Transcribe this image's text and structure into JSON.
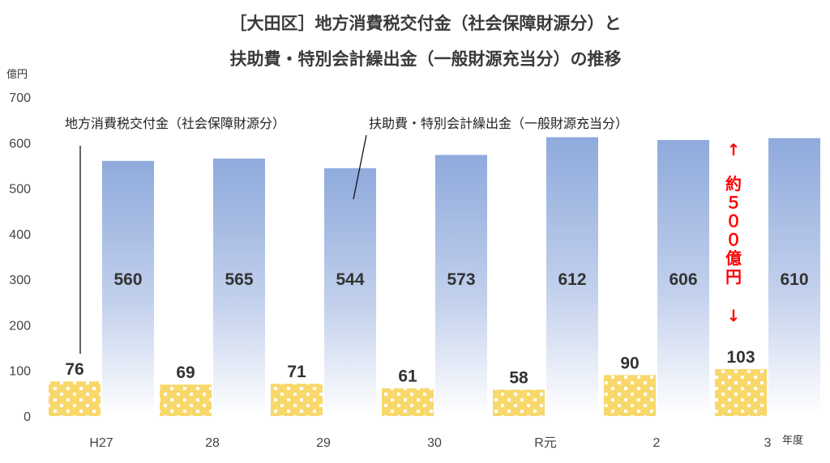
{
  "chart_data": {
    "type": "bar",
    "title_line1": "［大田区］地方消費税交付金（社会保障財源分）と",
    "title_line2": "扶助費・特別会計繰出金（一般財源充当分）の推移",
    "ylabel": "億円",
    "xlabel": "年度",
    "ylim": [
      0,
      700
    ],
    "yticks": [
      0,
      100,
      200,
      300,
      400,
      500,
      600,
      700
    ],
    "categories": [
      "H27",
      "28",
      "29",
      "30",
      "R元",
      "2",
      "3"
    ],
    "series": [
      {
        "name": "地方消費税交付金（社会保障財源分）",
        "values": [
          76,
          69,
          71,
          61,
          58,
          90,
          103
        ],
        "color": "#f7d96a"
      },
      {
        "name": "扶助費・特別会計繰出金（一般財源充当分）",
        "values": [
          560,
          565,
          544,
          573,
          612,
          606,
          610
        ],
        "color": "#8eaadb"
      }
    ],
    "annotation": {
      "arrow_up": "↑",
      "text_chars": [
        "約",
        "５",
        "０",
        "０",
        "億",
        "円"
      ],
      "arrow_down": "↓",
      "color": "#ff0000"
    },
    "grid": false,
    "legend": "callout labels above bars"
  }
}
